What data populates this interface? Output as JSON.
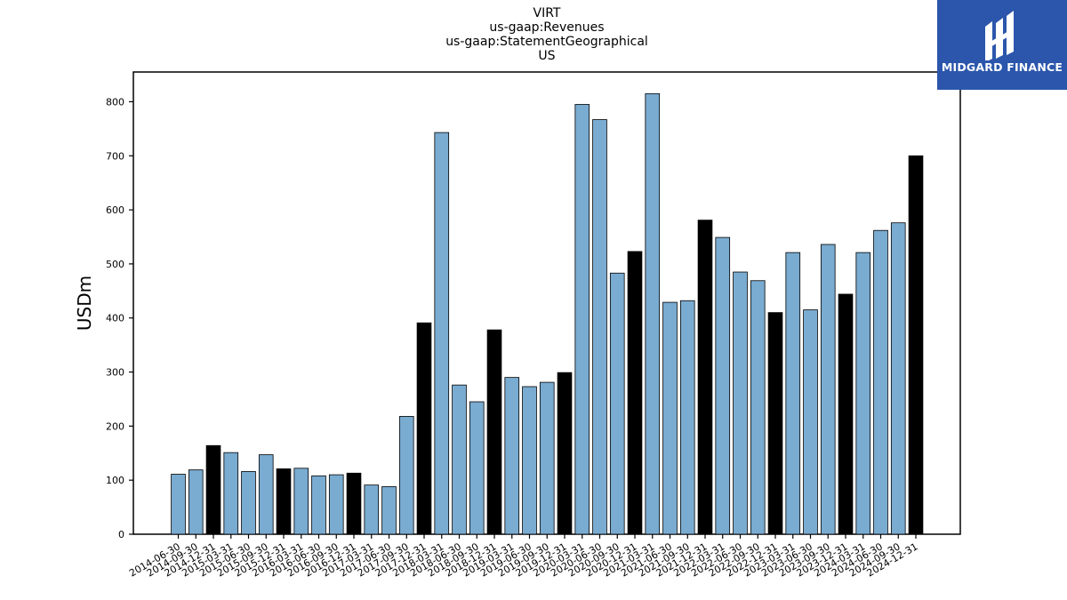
{
  "chart_data": {
    "type": "bar",
    "title_lines": [
      "VIRT",
      "us-gaap:Revenues",
      "us-gaap:StatementGeographical",
      "US"
    ],
    "xlabel": "",
    "ylabel": "USDm",
    "ylim": [
      0,
      855
    ],
    "yticks": [
      0,
      100,
      200,
      300,
      400,
      500,
      600,
      700,
      800
    ],
    "grid": false,
    "categories": [
      "2014-06-30",
      "2014-09-30",
      "2014-12-31",
      "2015-03-31",
      "2015-06-30",
      "2015-09-30",
      "2015-12-31",
      "2016-03-31",
      "2016-06-30",
      "2016-09-30",
      "2016-12-31",
      "2017-03-31",
      "2017-06-30",
      "2017-09-30",
      "2017-12-31",
      "2018-03-31",
      "2018-06-30",
      "2018-09-30",
      "2018-12-31",
      "2019-03-31",
      "2019-06-30",
      "2019-09-30",
      "2019-12-31",
      "2020-03-31",
      "2020-06-30",
      "2020-09-30",
      "2020-12-31",
      "2021-03-31",
      "2021-06-30",
      "2021-09-30",
      "2021-12-31",
      "2022-03-31",
      "2022-06-30",
      "2022-09-30",
      "2022-12-31",
      "2023-03-31",
      "2023-06-30",
      "2023-09-30",
      "2023-12-31",
      "2024-03-31",
      "2024-06-30",
      "2024-09-30",
      "2024-12-31"
    ],
    "values": [
      111,
      119,
      164,
      151,
      116,
      147,
      121,
      122,
      108,
      110,
      113,
      91,
      88,
      218,
      391,
      743,
      276,
      245,
      378,
      290,
      273,
      281,
      299,
      795,
      767,
      483,
      523,
      815,
      429,
      432,
      581,
      549,
      485,
      469,
      410,
      521,
      415,
      536,
      444,
      521,
      562,
      576,
      700
    ],
    "colors": {
      "quarter": "#7aabd0",
      "year_end": "#000000",
      "edge": "#000000"
    }
  },
  "logo": {
    "text": "MIDGARD FINANCE",
    "background": "#2b56ac"
  }
}
